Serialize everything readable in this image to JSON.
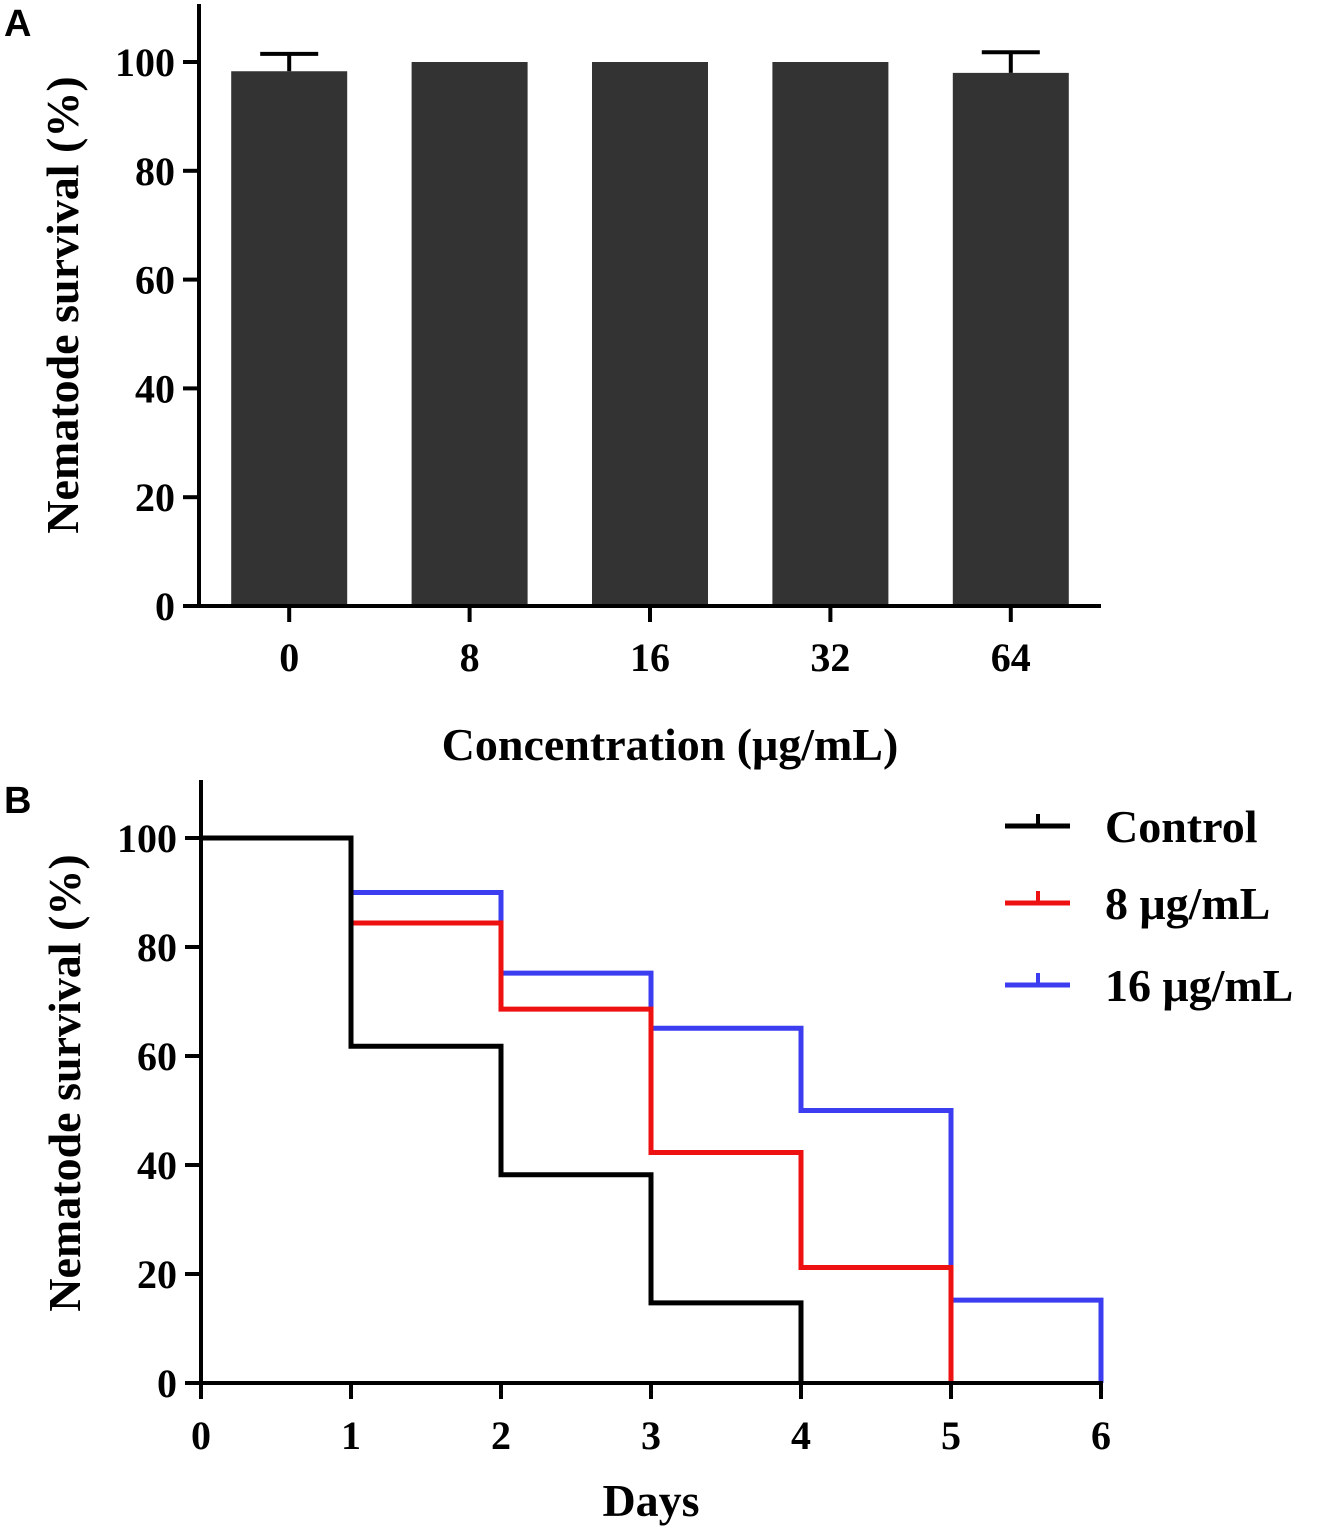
{
  "chart_data": [
    {
      "panel": "A",
      "type": "bar",
      "categories": [
        "0",
        "8",
        "16",
        "32",
        "64"
      ],
      "values": [
        98.3,
        100,
        100,
        100,
        98.0
      ],
      "error_upper": [
        101.5,
        null,
        null,
        null,
        101.8
      ],
      "ylim": [
        0,
        110
      ],
      "yticks": [
        "0",
        "20",
        "40",
        "60",
        "80",
        "100"
      ],
      "xlabel": "Concentration (μg/mL)",
      "ylabel": "Nematode survival (%)",
      "bar_color": "#333333"
    },
    {
      "panel": "B",
      "type": "line",
      "step": true,
      "xlim": [
        0,
        6
      ],
      "ylim": [
        0,
        110
      ],
      "xticks": [
        "0",
        "1",
        "2",
        "3",
        "4",
        "5",
        "6"
      ],
      "yticks": [
        "0",
        "20",
        "40",
        "60",
        "80",
        "100"
      ],
      "xlabel": "Days",
      "ylabel": "Nematode survival (%)",
      "legend_position": "top-right",
      "series": [
        {
          "name": "Control",
          "color": "#000000",
          "x": [
            0,
            1,
            2,
            3,
            4
          ],
          "y": [
            100,
            61.8,
            38.2,
            14.7,
            0
          ]
        },
        {
          "name": "8 μg/mL",
          "color": "#ee1111",
          "x": [
            0,
            1,
            2,
            3,
            4,
            5
          ],
          "y": [
            100,
            84.4,
            68.6,
            42.3,
            21.2,
            0
          ]
        },
        {
          "name": "16 μg/mL",
          "color": "#3c3cf0",
          "x": [
            0,
            1,
            2,
            3,
            4,
            5,
            6
          ],
          "y": [
            100,
            90,
            75.2,
            65.1,
            50,
            15.2,
            0
          ]
        }
      ]
    }
  ]
}
